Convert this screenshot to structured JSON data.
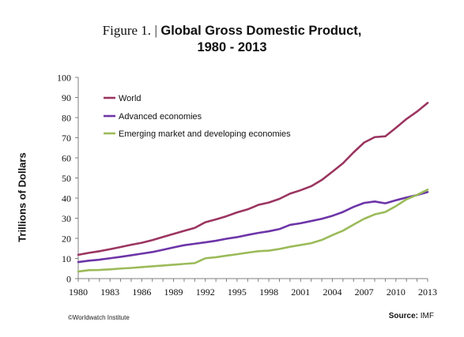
{
  "title": {
    "figure": "Figure 1.",
    "separator": "|",
    "line1": "Global Gross Domestic Product,",
    "line2": "1980 - 2013"
  },
  "footer": {
    "credit": "©Worldwatch Institute",
    "source_label": "Source:",
    "source_value": "IMF"
  },
  "chart_data": {
    "type": "line",
    "title": "Global Gross Domestic Product, 1980 - 2013",
    "xlabel": "",
    "ylabel": "Trillions of Dollars",
    "xlim": [
      1980,
      2013
    ],
    "ylim": [
      0,
      100
    ],
    "x_ticks": [
      "1980",
      "1983",
      "1986",
      "1989",
      "1992",
      "1995",
      "1998",
      "2001",
      "2004",
      "2007",
      "2010",
      "2013"
    ],
    "y_ticks": [
      "0",
      "10",
      "20",
      "30",
      "40",
      "50",
      "60",
      "70",
      "80",
      "90",
      "100"
    ],
    "grid": false,
    "legend_position": "top-left",
    "x": [
      1980,
      1981,
      1982,
      1983,
      1984,
      1985,
      1986,
      1987,
      1988,
      1989,
      1990,
      1991,
      1992,
      1993,
      1994,
      1995,
      1996,
      1997,
      1998,
      1999,
      2000,
      2001,
      2002,
      2003,
      2004,
      2005,
      2006,
      2007,
      2008,
      2009,
      2010,
      2011,
      2012,
      2013
    ],
    "series": [
      {
        "name": "World",
        "color": "#9b3560",
        "values": [
          11.8,
          12.8,
          13.6,
          14.6,
          15.7,
          16.8,
          17.8,
          19.1,
          20.7,
          22.2,
          23.7,
          25.2,
          28.0,
          29.4,
          31.0,
          32.9,
          34.4,
          36.6,
          37.8,
          39.6,
          42.2,
          43.9,
          45.9,
          49.0,
          53.1,
          57.3,
          62.7,
          67.6,
          70.3,
          70.7,
          74.9,
          79.3,
          83.0,
          87.3
        ]
      },
      {
        "name": "Advanced economies",
        "color": "#6d35a8",
        "values": [
          8.2,
          8.9,
          9.4,
          10.1,
          10.8,
          11.6,
          12.4,
          13.2,
          14.3,
          15.5,
          16.6,
          17.3,
          18.0,
          18.8,
          19.8,
          20.6,
          21.7,
          22.7,
          23.5,
          24.6,
          26.7,
          27.5,
          28.6,
          29.7,
          31.2,
          33.1,
          35.6,
          37.6,
          38.3,
          37.4,
          38.9,
          40.3,
          41.5,
          43.0
        ]
      },
      {
        "name": "Emerging market and developing economies",
        "color": "#9bbb59",
        "values": [
          3.5,
          4.2,
          4.3,
          4.6,
          5.0,
          5.3,
          5.7,
          6.1,
          6.5,
          6.9,
          7.3,
          7.7,
          10.1,
          10.6,
          11.4,
          12.1,
          12.9,
          13.6,
          13.9,
          14.7,
          15.8,
          16.7,
          17.6,
          19.2,
          21.6,
          23.8,
          26.8,
          29.7,
          31.9,
          33.1,
          36.0,
          39.4,
          41.6,
          44.2
        ]
      }
    ]
  }
}
